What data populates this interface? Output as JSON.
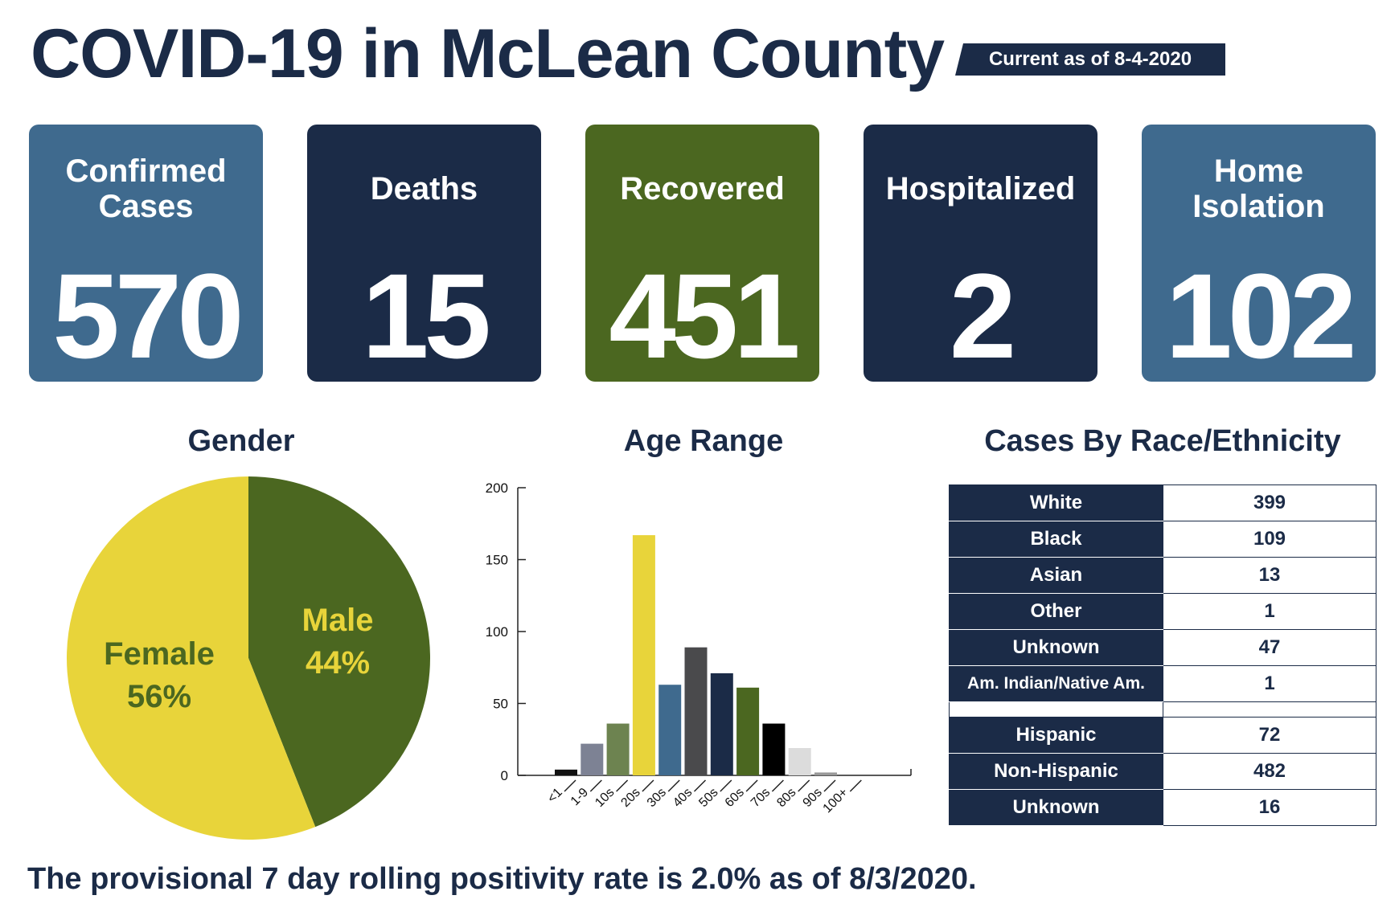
{
  "header": {
    "title": "COVID-19 in McLean County",
    "current_as_of": "Current as of 8-4-2020"
  },
  "stats": [
    {
      "label": "Confirmed Cases",
      "value": "570",
      "color": "#3f6a8e"
    },
    {
      "label": "Deaths",
      "value": "15",
      "color": "#1b2b47"
    },
    {
      "label": "Recovered",
      "value": "451",
      "color": "#4b6720"
    },
    {
      "label": "Hospitalized",
      "value": "2",
      "color": "#1b2b47"
    },
    {
      "label": "Home Isolation",
      "value": "102",
      "color": "#3f6a8e"
    }
  ],
  "sections": {
    "gender": "Gender",
    "age": "Age Range",
    "race": "Cases By Race/Ethnicity"
  },
  "chart_data": [
    {
      "type": "pie",
      "title": "Gender",
      "slices": [
        {
          "label": "Male",
          "percent_label": "44%",
          "value": 44,
          "color": "#4b6720",
          "text_color": "#e8d43a"
        },
        {
          "label": "Female",
          "percent_label": "56%",
          "value": 56,
          "color": "#e8d43a",
          "text_color": "#4b6720"
        }
      ]
    },
    {
      "type": "bar",
      "title": "Age Range",
      "categories": [
        "<1",
        "1-9",
        "10s",
        "20s",
        "30s",
        "40s",
        "50s",
        "60s",
        "70s",
        "80s",
        "90s",
        "100+"
      ],
      "values": [
        4,
        22,
        36,
        167,
        63,
        89,
        71,
        61,
        36,
        19,
        2,
        0
      ],
      "colors": [
        "#111111",
        "#7d8294",
        "#6d8350",
        "#e8d43a",
        "#3f6a8e",
        "#4a4a4c",
        "#1b2b47",
        "#4b6720",
        "#000000",
        "#dcdcdc",
        "#999999",
        "#cccccc"
      ],
      "ylim": [
        0,
        200
      ],
      "yticks": [
        "0",
        "50",
        "100",
        "150",
        "200"
      ],
      "xlabel": "",
      "ylabel": "",
      "grid": false
    },
    {
      "type": "table",
      "title": "Cases By Race/Ethnicity",
      "race_rows": [
        {
          "label": "White",
          "value": "399"
        },
        {
          "label": "Black",
          "value": "109"
        },
        {
          "label": "Asian",
          "value": "13"
        },
        {
          "label": "Other",
          "value": "1"
        },
        {
          "label": "Unknown",
          "value": "47"
        },
        {
          "label": "Am. Indian/Native Am.",
          "value": "1"
        }
      ],
      "ethnicity_rows": [
        {
          "label": "Hispanic",
          "value": "72"
        },
        {
          "label": "Non-Hispanic",
          "value": "482"
        },
        {
          "label": "Unknown",
          "value": "16"
        }
      ]
    }
  ],
  "footnote": "The provisional 7 day rolling positivity rate is 2.0% as of 8/3/2020."
}
